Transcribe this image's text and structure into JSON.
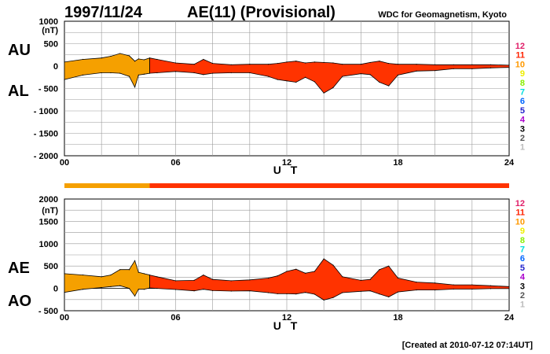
{
  "header": {
    "date": "1997/11/24",
    "title": "AE(11) (Provisional)",
    "source": "WDC for Geomagnetism, Kyoto"
  },
  "footer": {
    "created": "[Created at 2010-07-12 07:14UT]"
  },
  "colors": {
    "segment_before": "#f5a000",
    "segment_after": "#ff3300",
    "grid": "#999999",
    "index_bar_before": "#f5a000",
    "index_bar_after": "#ff3300"
  },
  "legend_numbers": [
    {
      "label": "12",
      "color": "#e0206a"
    },
    {
      "label": "11",
      "color": "#ff2200"
    },
    {
      "label": "10",
      "color": "#ff9900"
    },
    {
      "label": "9",
      "color": "#eeee00"
    },
    {
      "label": "8",
      "color": "#88ee00"
    },
    {
      "label": "7",
      "color": "#00dddd"
    },
    {
      "label": "6",
      "color": "#0066ff"
    },
    {
      "label": "5",
      "color": "#2222cc"
    },
    {
      "label": "4",
      "color": "#aa00cc"
    },
    {
      "label": "3",
      "color": "#000000"
    },
    {
      "label": "2",
      "color": "#555555"
    },
    {
      "label": "1",
      "color": "#bbbbbb"
    }
  ],
  "index_bar": {
    "segments": [
      {
        "from": 0,
        "to": 4.6,
        "color": "#f5a000"
      },
      {
        "from": 4.6,
        "to": 24,
        "color": "#ff3300"
      }
    ]
  },
  "chart_data": [
    {
      "type": "area",
      "panel": "top",
      "units_label": "(nT)",
      "xlabel": "U T",
      "xlim": [
        0,
        24
      ],
      "ylim": [
        -2000,
        1000
      ],
      "x_ticks": [
        "00",
        "06",
        "12",
        "18",
        "24"
      ],
      "y_ticks": [
        "1000",
        "500",
        "0",
        "- 500",
        "- 1000",
        "- 1500",
        "- 2000"
      ],
      "side_labels": [
        "AU",
        "AL"
      ],
      "color_change_hour": 4.6,
      "series": [
        {
          "name": "AU",
          "x": [
            0,
            1,
            2,
            2.5,
            3,
            3.5,
            3.8,
            4,
            4.3,
            4.6,
            5,
            6,
            7,
            7.5,
            8,
            9,
            10,
            11,
            11.5,
            12,
            12.5,
            13,
            13.5,
            14,
            14.5,
            15,
            16,
            16.5,
            17,
            17.5,
            18,
            19,
            20,
            21,
            22,
            23,
            24
          ],
          "values": [
            90,
            150,
            180,
            220,
            280,
            230,
            110,
            160,
            140,
            180,
            150,
            70,
            40,
            150,
            60,
            30,
            40,
            40,
            60,
            90,
            110,
            70,
            90,
            80,
            70,
            40,
            40,
            80,
            110,
            60,
            40,
            40,
            30,
            30,
            30,
            30,
            20
          ]
        },
        {
          "name": "AL",
          "x": [
            0,
            1,
            2,
            2.5,
            3,
            3.5,
            3.8,
            4,
            4.3,
            4.6,
            5,
            6,
            7,
            7.5,
            8,
            9,
            10,
            11,
            11.5,
            12,
            12.5,
            13,
            13.5,
            14,
            14.5,
            15,
            16,
            16.5,
            17,
            17.5,
            18,
            19,
            20,
            21,
            22,
            23,
            24
          ],
          "values": [
            -300,
            -200,
            -150,
            -150,
            -160,
            -230,
            -470,
            -200,
            -180,
            -160,
            -150,
            -120,
            -150,
            -190,
            -160,
            -150,
            -150,
            -230,
            -300,
            -330,
            -360,
            -250,
            -350,
            -600,
            -480,
            -230,
            -170,
            -190,
            -360,
            -440,
            -200,
            -110,
            -100,
            -60,
            -60,
            -40,
            -30
          ]
        }
      ]
    },
    {
      "type": "area",
      "panel": "bottom",
      "units_label": "(nT)",
      "xlabel": "U T",
      "xlim": [
        0,
        24
      ],
      "ylim": [
        -500,
        2000
      ],
      "x_ticks": [
        "00",
        "06",
        "12",
        "18",
        "24"
      ],
      "y_ticks": [
        "2000",
        "1500",
        "1000",
        "500",
        "0",
        "- 500"
      ],
      "side_labels": [
        "AE",
        "AO"
      ],
      "color_change_hour": 4.6,
      "series": [
        {
          "name": "AE",
          "x": [
            0,
            1,
            2,
            2.5,
            3,
            3.5,
            3.8,
            4,
            4.3,
            4.6,
            5,
            6,
            7,
            7.5,
            8,
            9,
            10,
            11,
            11.5,
            12,
            12.5,
            13,
            13.5,
            14,
            14.5,
            15,
            16,
            16.5,
            17,
            17.5,
            18,
            19,
            20,
            21,
            22,
            23,
            24
          ],
          "values": [
            330,
            300,
            260,
            300,
            420,
            420,
            620,
            360,
            330,
            300,
            260,
            170,
            180,
            300,
            200,
            170,
            190,
            230,
            280,
            380,
            430,
            340,
            380,
            660,
            520,
            260,
            180,
            200,
            420,
            500,
            230,
            140,
            120,
            80,
            80,
            60,
            40
          ]
        },
        {
          "name": "AO",
          "x": [
            0,
            1,
            2,
            2.5,
            3,
            3.5,
            3.8,
            4,
            4.3,
            4.6,
            5,
            6,
            7,
            7.5,
            8,
            9,
            10,
            11,
            11.5,
            12,
            12.5,
            13,
            13.5,
            14,
            14.5,
            15,
            16,
            16.5,
            17,
            17.5,
            18,
            19,
            20,
            21,
            22,
            23,
            24
          ],
          "values": [
            -90,
            -20,
            20,
            40,
            60,
            0,
            -170,
            -20,
            -20,
            10,
            0,
            -25,
            -55,
            -20,
            -50,
            -60,
            -55,
            -95,
            -120,
            -120,
            -125,
            -90,
            -130,
            -260,
            -205,
            -95,
            -65,
            -55,
            -125,
            -190,
            -80,
            -35,
            -35,
            -15,
            -15,
            -5,
            -5
          ]
        }
      ]
    }
  ]
}
